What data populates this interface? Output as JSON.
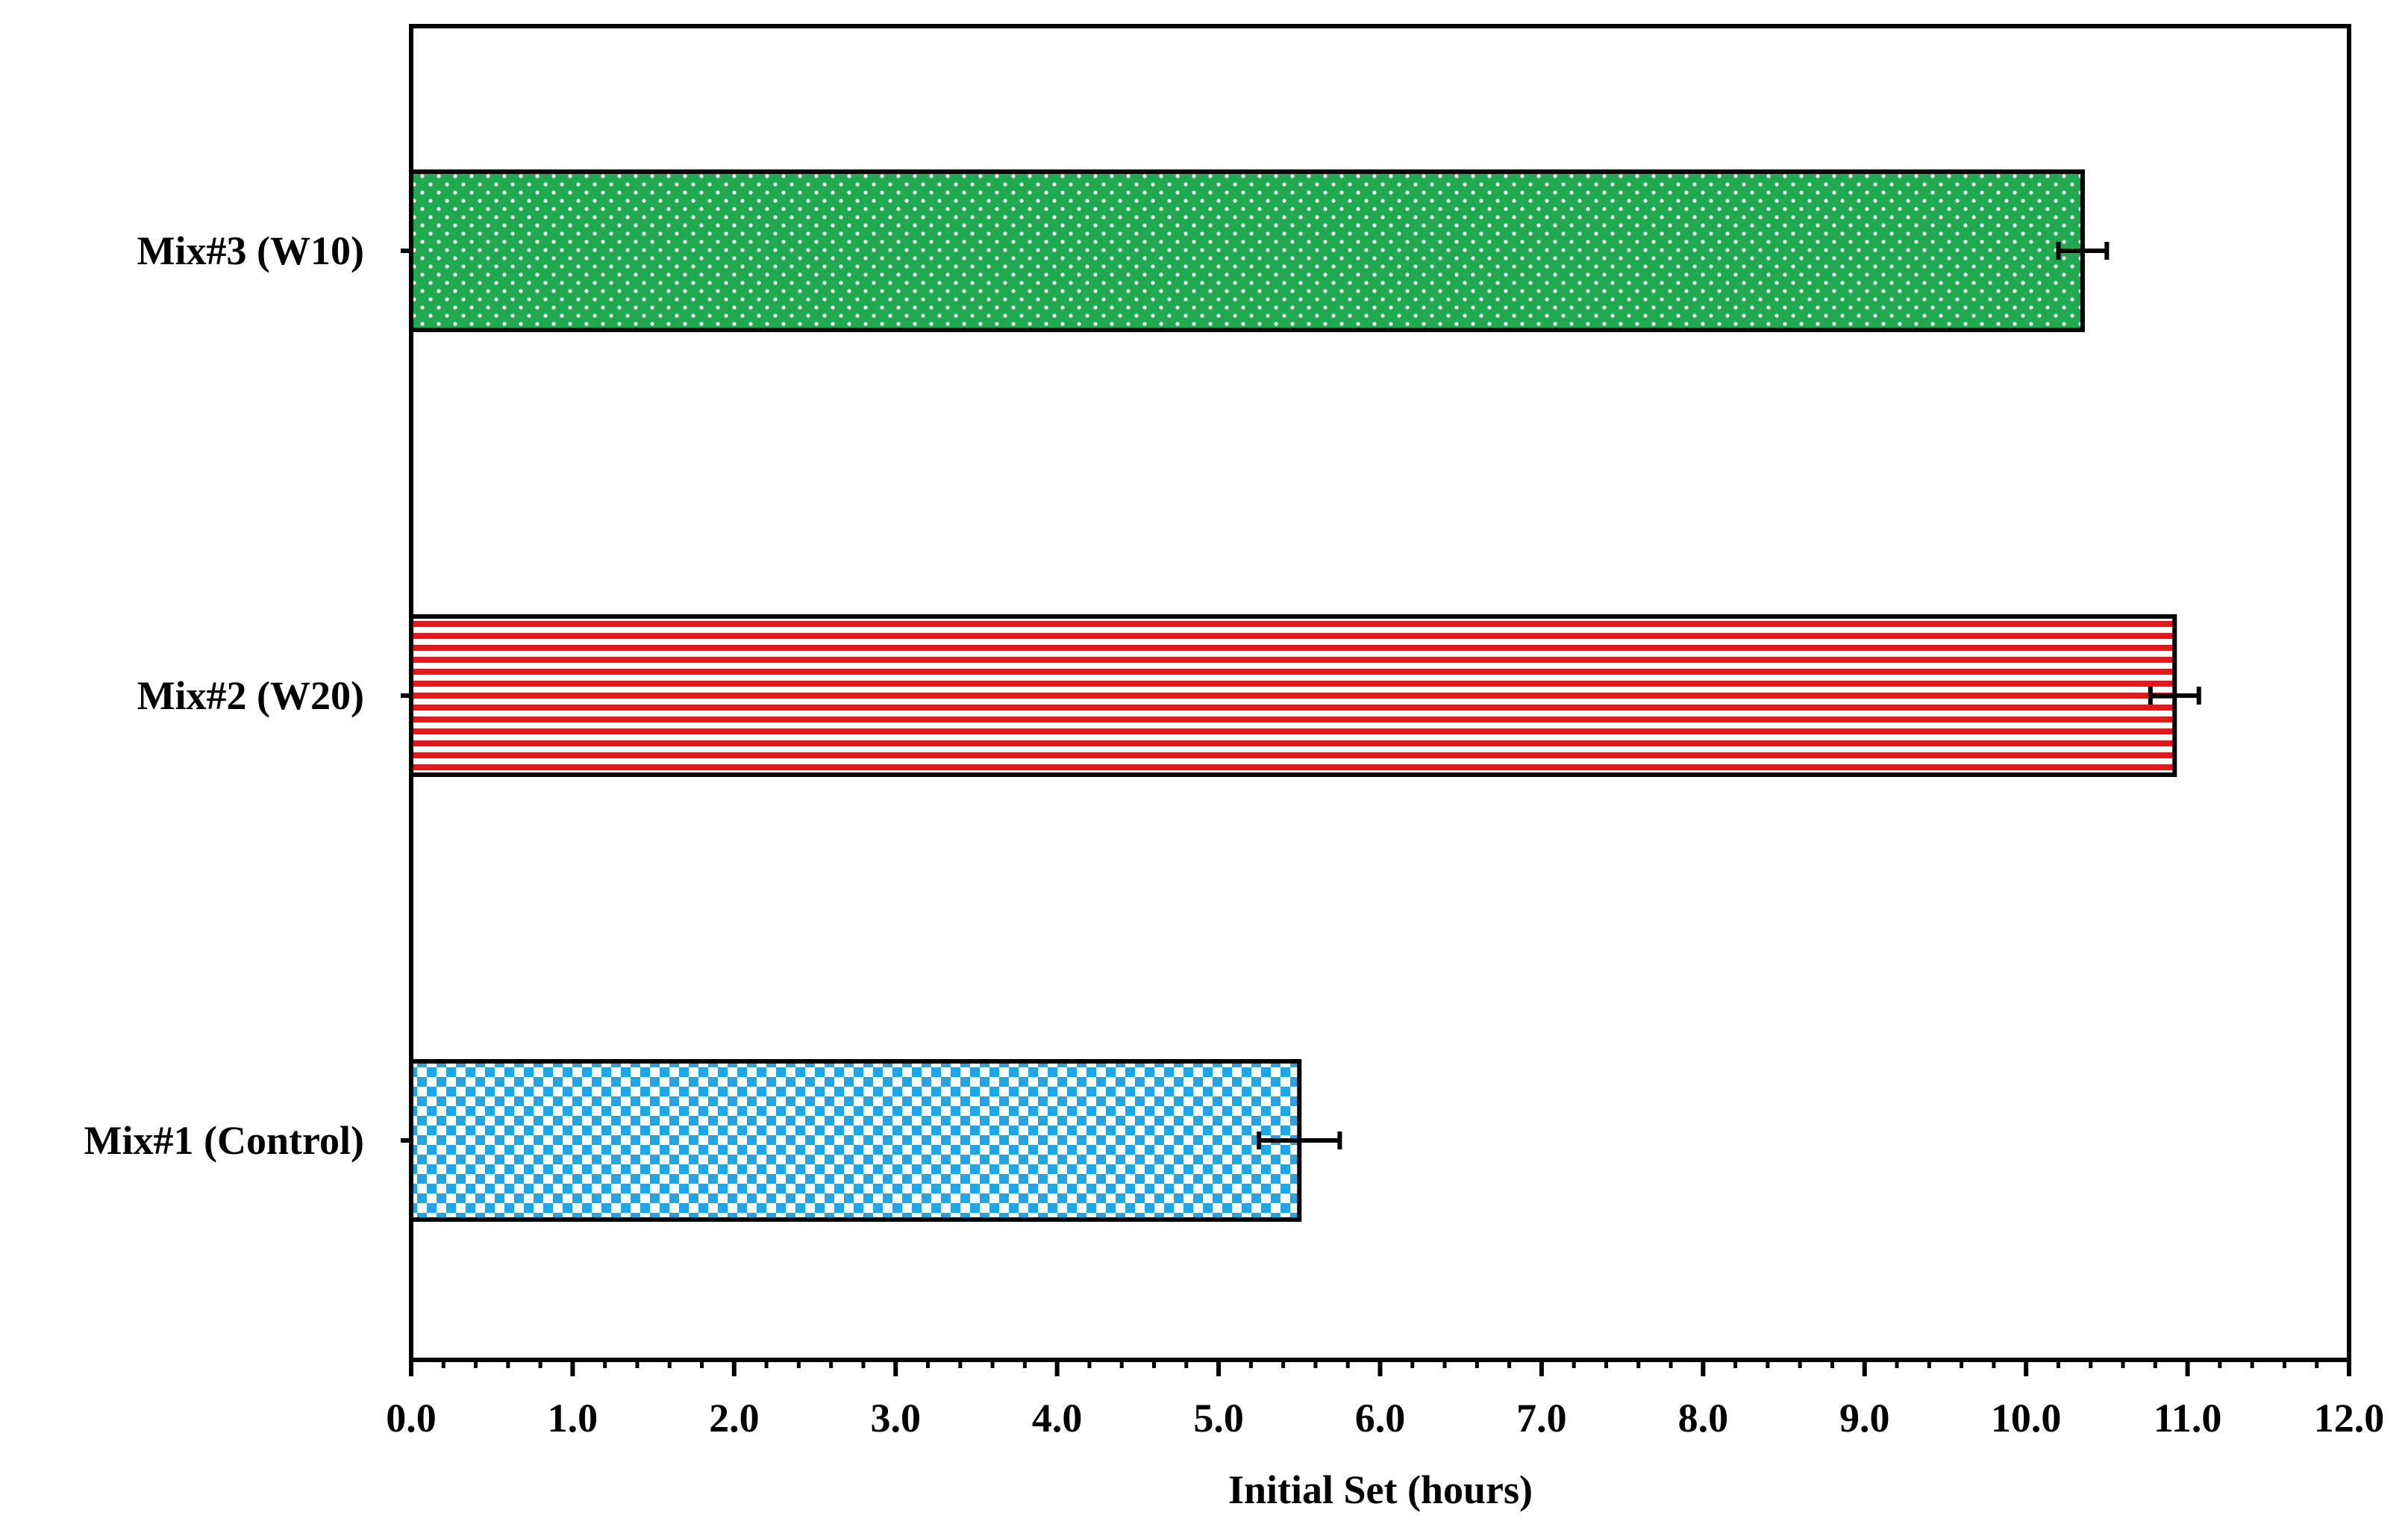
{
  "chart_data": {
    "type": "bar",
    "orientation": "horizontal",
    "title": "",
    "xlabel": "Initial Set (hours)",
    "ylabel": "",
    "xlim": [
      0,
      12
    ],
    "x_ticks": [
      "0.0",
      "1.0",
      "2.0",
      "3.0",
      "4.0",
      "5.0",
      "6.0",
      "7.0",
      "8.0",
      "9.0",
      "10.0",
      "11.0",
      "12.0"
    ],
    "x_minor_step": 0.2,
    "grid": false,
    "legend": "none",
    "categories": [
      "Mix#3 (W10)",
      "Mix#2 (W20)",
      "Mix#1 (Control)"
    ],
    "values": [
      10.35,
      10.92,
      5.5
    ],
    "errors": [
      0.15,
      0.15,
      0.25
    ],
    "bar_styles": [
      {
        "pattern": "dots",
        "color": "#1faa4f",
        "accent": "#ffffff"
      },
      {
        "pattern": "horizontal-stripes",
        "color": "#e8161b",
        "accent": "#ffffff"
      },
      {
        "pattern": "checker",
        "color": "#1ea7e8",
        "accent": "#ffffff"
      }
    ]
  }
}
